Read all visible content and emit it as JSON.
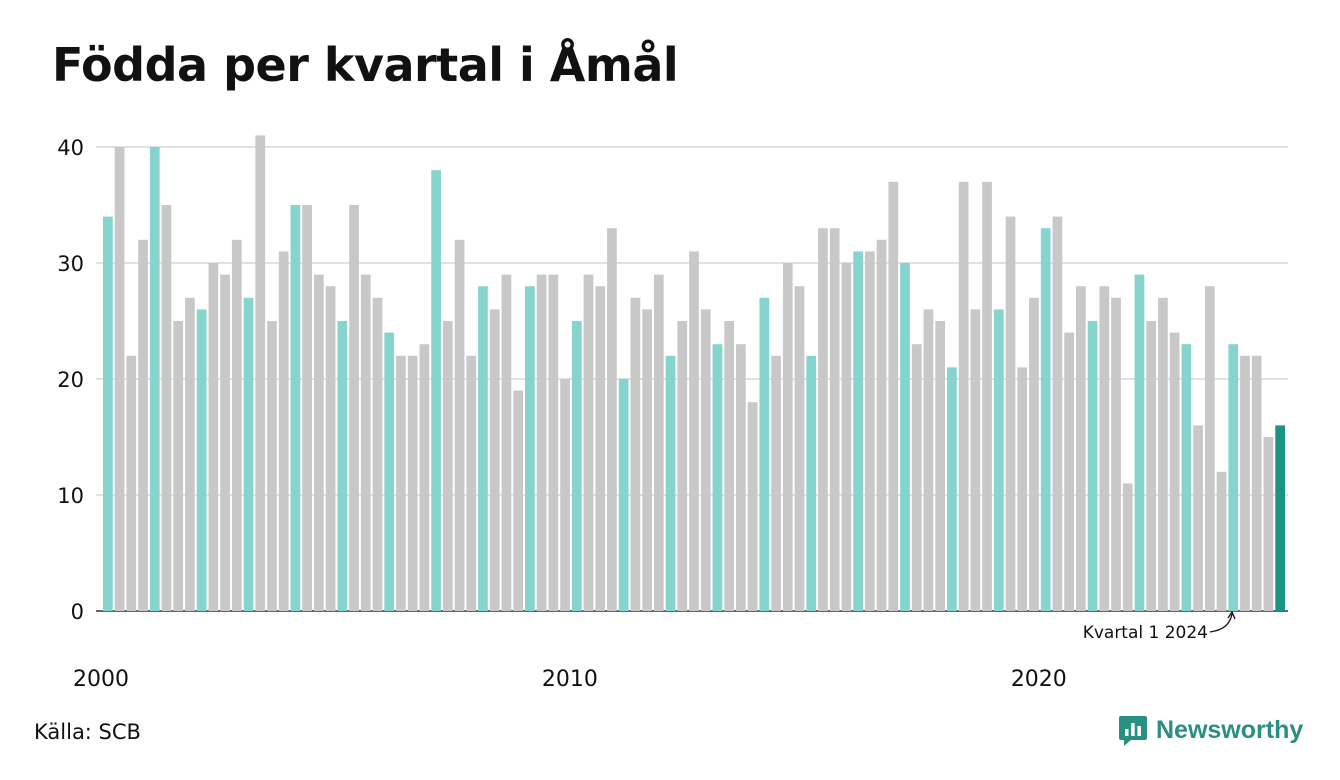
{
  "title": "Födda per kvartal i Åmål",
  "source": "Källa: SCB",
  "brand": "Newsworthy",
  "colors": {
    "highlight_q1": "#86d4ce",
    "other": "#c8c8c8",
    "latest": "#1a9485",
    "grid": "#e1e1e1",
    "axis": "#333333",
    "brand": "#2a8f83"
  },
  "chart_data": {
    "type": "bar",
    "title": "Födda per kvartal i Åmål",
    "xlabel": "",
    "ylabel": "",
    "ylim": [
      0,
      40
    ],
    "yticks": [
      0,
      10,
      20,
      30,
      40
    ],
    "xticks": [
      "2000",
      "2010",
      "2020"
    ],
    "grid": true,
    "start": "2000 Q1",
    "annotation": {
      "text": "Kvartal 1 2024",
      "target": "2024 Q1"
    },
    "values": [
      34,
      40,
      22,
      32,
      40,
      35,
      25,
      27,
      26,
      30,
      29,
      32,
      27,
      41,
      25,
      31,
      35,
      35,
      29,
      28,
      25,
      35,
      29,
      27,
      24,
      22,
      22,
      23,
      38,
      25,
      32,
      22,
      28,
      26,
      29,
      19,
      28,
      29,
      29,
      20,
      25,
      29,
      28,
      33,
      20,
      27,
      26,
      29,
      22,
      25,
      31,
      26,
      23,
      25,
      23,
      18,
      27,
      22,
      30,
      28,
      22,
      33,
      33,
      30,
      31,
      31,
      32,
      37,
      30,
      23,
      26,
      25,
      21,
      37,
      26,
      37,
      26,
      34,
      21,
      27,
      33,
      34,
      24,
      28,
      25,
      28,
      27,
      11,
      29,
      25,
      27,
      24,
      23,
      16,
      28,
      12,
      23,
      22,
      22,
      15,
      16
    ]
  }
}
